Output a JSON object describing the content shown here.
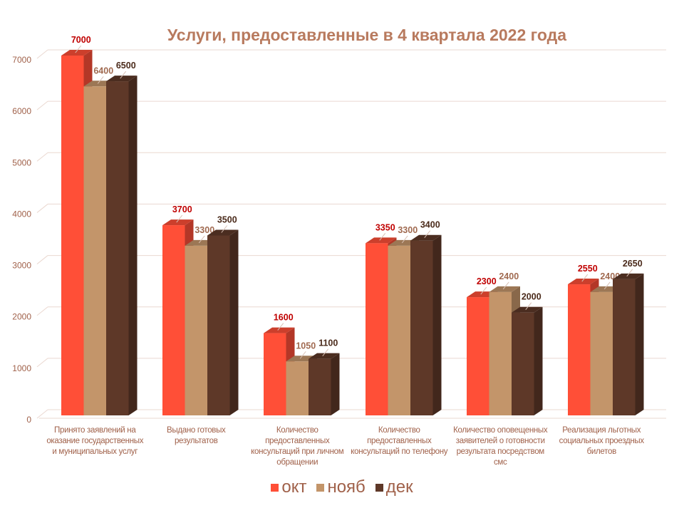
{
  "chart_data": {
    "type": "bar",
    "title": "Услуги, предоставленные в 4 квартала 2022 года",
    "categories": [
      "Принято заявлений на оказание государственных и муниципальных услуг",
      "Выдано готовых результатов",
      "Количество предоставленных консультаций  при личном обращении",
      "Количество предоставленных консультаций   по телефону",
      "Количество оповещенных заявителей о готовности результата посредством смс",
      "Реализация льготных социальных проездных билетов"
    ],
    "series": [
      {
        "name": "окт",
        "color": "#ff4f37",
        "label_color": "#c00000",
        "values": [
          7000,
          3700,
          1600,
          3350,
          2300,
          2550
        ]
      },
      {
        "name": "нояб",
        "color": "#c3956a",
        "label_color": "#a06a50",
        "values": [
          6400,
          3300,
          1050,
          3300,
          2400,
          2400
        ]
      },
      {
        "name": "дек",
        "color": "#5e3828",
        "label_color": "#4a2a1a",
        "values": [
          6500,
          3500,
          1100,
          3400,
          2000,
          2650
        ]
      }
    ],
    "yticks": [
      "0",
      "1000",
      "2000",
      "3000",
      "4000",
      "5000",
      "6000",
      "7000"
    ],
    "ylim": [
      0,
      7000
    ],
    "xlabel": "",
    "ylabel": "",
    "grid": true,
    "legend": "bottom",
    "style": "3d-clustered-column"
  }
}
